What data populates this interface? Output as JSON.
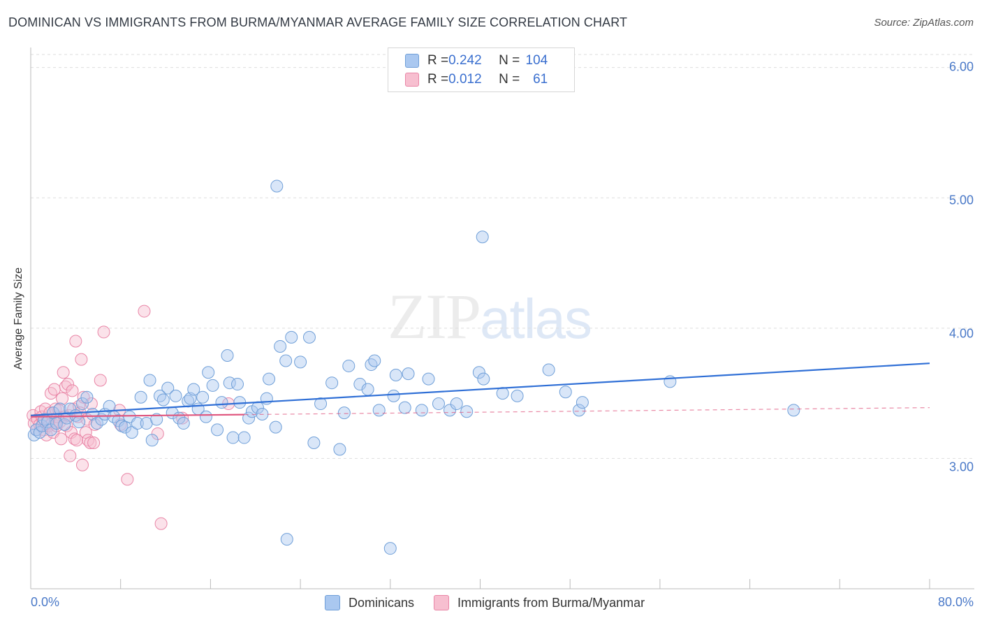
{
  "title": "DOMINICAN VS IMMIGRANTS FROM BURMA/MYANMAR AVERAGE FAMILY SIZE CORRELATION CHART",
  "source": "Source: ZipAtlas.com",
  "watermark": {
    "zip": "ZIP",
    "atlas": "atlas"
  },
  "stats": {
    "row1": {
      "r_label": "R = ",
      "r_value": "0.242",
      "n_label": "N = ",
      "n_value": "104"
    },
    "row2": {
      "r_label": "R = ",
      "r_value": "0.012",
      "n_label": "N = ",
      "n_value": "61"
    }
  },
  "legend": {
    "series1": "Dominicans",
    "series2": "Immigrants from Burma/Myanmar"
  },
  "colors": {
    "blue_fill": "#aac8f0",
    "blue_stroke": "#6f9fd8",
    "blue_line": "#2f6fd6",
    "pink_fill": "#f7bfd0",
    "pink_stroke": "#e985a6",
    "pink_line": "#e0577f",
    "grid": "#dddddd",
    "axis_text": "#4a79c8"
  },
  "chart_data": {
    "type": "scatter",
    "title": "DOMINICAN VS IMMIGRANTS FROM BURMA/MYANMAR AVERAGE FAMILY SIZE CORRELATION CHART",
    "xlabel": "",
    "ylabel": "Average Family Size",
    "xlim": [
      0,
      80
    ],
    "ylim": [
      2.0,
      6.1
    ],
    "x_tick_labels": [
      "0.0%",
      "80.0%"
    ],
    "y_ticks": [
      3.0,
      4.0,
      5.0,
      6.0
    ],
    "y_tick_labels": [
      "3.00",
      "4.00",
      "5.00",
      "6.00"
    ],
    "grid": true,
    "series": [
      {
        "name": "Dominicans",
        "color": "#6f9fd8",
        "trend": {
          "x": [
            0,
            80
          ],
          "y": [
            3.33,
            3.73
          ]
        },
        "points": [
          [
            0.3,
            3.18
          ],
          [
            0.5,
            3.22
          ],
          [
            0.8,
            3.2
          ],
          [
            1.0,
            3.25
          ],
          [
            1.2,
            3.3
          ],
          [
            1.5,
            3.28
          ],
          [
            1.8,
            3.22
          ],
          [
            2.0,
            3.35
          ],
          [
            2.3,
            3.27
          ],
          [
            2.6,
            3.38
          ],
          [
            3.0,
            3.26
          ],
          [
            3.2,
            3.31
          ],
          [
            3.5,
            3.38
          ],
          [
            4.0,
            3.33
          ],
          [
            4.3,
            3.28
          ],
          [
            4.6,
            3.42
          ],
          [
            5.0,
            3.47
          ],
          [
            5.5,
            3.34
          ],
          [
            5.9,
            3.27
          ],
          [
            6.3,
            3.3
          ],
          [
            6.6,
            3.34
          ],
          [
            7.0,
            3.4
          ],
          [
            7.4,
            3.32
          ],
          [
            7.8,
            3.29
          ],
          [
            8.1,
            3.25
          ],
          [
            8.4,
            3.24
          ],
          [
            8.8,
            3.32
          ],
          [
            9.0,
            3.2
          ],
          [
            9.5,
            3.27
          ],
          [
            9.8,
            3.47
          ],
          [
            10.3,
            3.27
          ],
          [
            10.6,
            3.6
          ],
          [
            10.8,
            3.14
          ],
          [
            11.2,
            3.3
          ],
          [
            11.5,
            3.48
          ],
          [
            11.8,
            3.45
          ],
          [
            12.2,
            3.54
          ],
          [
            12.6,
            3.35
          ],
          [
            12.9,
            3.48
          ],
          [
            13.2,
            3.31
          ],
          [
            13.6,
            3.27
          ],
          [
            14.0,
            3.44
          ],
          [
            14.2,
            3.46
          ],
          [
            14.5,
            3.53
          ],
          [
            14.9,
            3.38
          ],
          [
            15.3,
            3.47
          ],
          [
            15.6,
            3.32
          ],
          [
            15.8,
            3.66
          ],
          [
            16.2,
            3.56
          ],
          [
            16.6,
            3.22
          ],
          [
            17.0,
            3.43
          ],
          [
            17.5,
            3.79
          ],
          [
            17.7,
            3.58
          ],
          [
            18.0,
            3.16
          ],
          [
            18.4,
            3.57
          ],
          [
            18.6,
            3.43
          ],
          [
            19.0,
            3.16
          ],
          [
            19.4,
            3.31
          ],
          [
            19.7,
            3.36
          ],
          [
            20.2,
            3.39
          ],
          [
            20.6,
            3.34
          ],
          [
            21.0,
            3.46
          ],
          [
            21.2,
            3.61
          ],
          [
            21.8,
            3.24
          ],
          [
            22.2,
            3.86
          ],
          [
            22.7,
            3.75
          ],
          [
            23.2,
            3.93
          ],
          [
            24.0,
            3.74
          ],
          [
            24.8,
            3.93
          ],
          [
            25.2,
            3.12
          ],
          [
            25.8,
            3.42
          ],
          [
            26.8,
            3.58
          ],
          [
            27.5,
            3.07
          ],
          [
            27.9,
            3.35
          ],
          [
            28.3,
            3.71
          ],
          [
            29.3,
            3.57
          ],
          [
            30.0,
            3.53
          ],
          [
            30.3,
            3.72
          ],
          [
            30.6,
            3.75
          ],
          [
            31.0,
            3.37
          ],
          [
            32.3,
            3.48
          ],
          [
            32.5,
            3.64
          ],
          [
            33.3,
            3.39
          ],
          [
            33.6,
            3.65
          ],
          [
            34.8,
            3.37
          ],
          [
            35.4,
            3.61
          ],
          [
            36.3,
            3.42
          ],
          [
            37.3,
            3.37
          ],
          [
            37.9,
            3.42
          ],
          [
            38.8,
            3.36
          ],
          [
            39.9,
            3.66
          ],
          [
            40.3,
            3.61
          ],
          [
            42.0,
            3.5
          ],
          [
            43.3,
            3.48
          ],
          [
            46.1,
            3.68
          ],
          [
            47.6,
            3.51
          ],
          [
            48.8,
            3.37
          ],
          [
            49.1,
            3.43
          ],
          [
            56.9,
            3.59
          ],
          [
            67.9,
            3.37
          ],
          [
            21.9,
            5.09
          ],
          [
            40.2,
            4.7
          ],
          [
            22.8,
            2.38
          ],
          [
            32.0,
            2.31
          ]
        ]
      },
      {
        "name": "Immigrants from Burma/Myanmar",
        "color": "#e985a6",
        "trend": {
          "x": [
            0,
            80
          ],
          "y": [
            3.32,
            3.39
          ]
        },
        "points": [
          [
            0.2,
            3.33
          ],
          [
            0.3,
            3.27
          ],
          [
            0.5,
            3.22
          ],
          [
            0.6,
            3.3
          ],
          [
            0.8,
            3.26
          ],
          [
            0.9,
            3.36
          ],
          [
            1.0,
            3.32
          ],
          [
            1.1,
            3.28
          ],
          [
            1.2,
            3.22
          ],
          [
            1.3,
            3.38
          ],
          [
            1.4,
            3.18
          ],
          [
            1.5,
            3.3
          ],
          [
            1.6,
            3.25
          ],
          [
            1.7,
            3.35
          ],
          [
            1.8,
            3.5
          ],
          [
            1.9,
            3.27
          ],
          [
            2.0,
            3.2
          ],
          [
            2.1,
            3.53
          ],
          [
            2.2,
            3.38
          ],
          [
            2.3,
            3.25
          ],
          [
            2.4,
            3.32
          ],
          [
            2.5,
            3.37
          ],
          [
            2.6,
            3.28
          ],
          [
            2.7,
            3.15
          ],
          [
            2.8,
            3.46
          ],
          [
            2.9,
            3.66
          ],
          [
            3.0,
            3.32
          ],
          [
            3.1,
            3.55
          ],
          [
            3.2,
            3.25
          ],
          [
            3.3,
            3.57
          ],
          [
            3.4,
            3.33
          ],
          [
            3.5,
            3.02
          ],
          [
            3.6,
            3.2
          ],
          [
            3.7,
            3.52
          ],
          [
            3.8,
            3.38
          ],
          [
            3.9,
            3.15
          ],
          [
            4.0,
            3.9
          ],
          [
            4.1,
            3.14
          ],
          [
            4.2,
            3.32
          ],
          [
            4.3,
            3.4
          ],
          [
            4.4,
            3.35
          ],
          [
            4.5,
            3.76
          ],
          [
            4.6,
            2.95
          ],
          [
            4.7,
            3.47
          ],
          [
            4.9,
            3.2
          ],
          [
            5.0,
            3.3
          ],
          [
            5.1,
            3.14
          ],
          [
            5.3,
            3.12
          ],
          [
            5.4,
            3.42
          ],
          [
            5.6,
            3.12
          ],
          [
            5.7,
            3.26
          ],
          [
            6.2,
            3.6
          ],
          [
            6.5,
            3.97
          ],
          [
            7.9,
            3.37
          ],
          [
            8.0,
            3.26
          ],
          [
            8.6,
            2.84
          ],
          [
            10.1,
            4.13
          ],
          [
            11.3,
            3.19
          ],
          [
            11.6,
            2.5
          ],
          [
            13.5,
            3.31
          ],
          [
            17.6,
            3.42
          ]
        ]
      }
    ]
  }
}
